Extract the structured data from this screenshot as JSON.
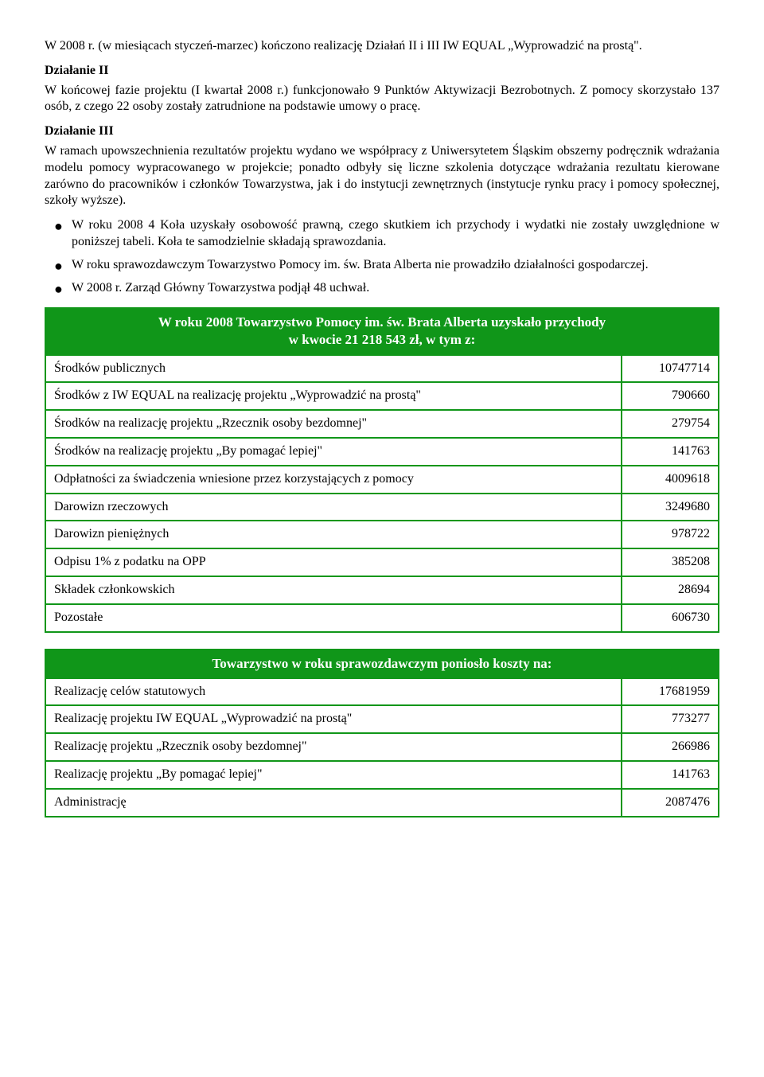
{
  "intro": {
    "p1": "W 2008 r. (w miesiącach styczeń-marzec) kończono realizację Działań II i III IW EQUAL „Wyprowadzić na prostą\".",
    "h_d2": "Działanie II",
    "p2": "W końcowej fazie projektu (I kwartał 2008 r.) funkcjonowało 9 Punktów Aktywizacji Bezrobotnych. Z pomocy skorzystało 137 osób, z czego 22 osoby zostały zatrudnione na podstawie umowy o pracę.",
    "h_d3": "Działanie III",
    "p3": "W ramach upowszechnienia rezultatów projektu wydano we współpracy z Uniwersytetem Śląskim obszerny podręcznik wdrażania modelu pomocy wypracowanego w projekcie; ponadto odbyły się liczne szkolenia dotyczące wdrażania rezultatu kierowane zarówno do pracowników i członków Towarzystwa, jak i do instytucji zewnętrznych (instytucje rynku pracy i pomocy społecznej, szkoły wyższe)."
  },
  "bullets": [
    "W roku 2008 4 Koła uzyskały osobowość prawną, czego skutkiem ich przychody i wydatki nie zostały uwzględnione w poniższej tabeli. Koła te samodzielnie składają sprawozdania.",
    "W roku sprawozdawczym Towarzystwo Pomocy im. św. Brata Alberta nie prowadziło działalności gospodarczej.",
    "W 2008 r. Zarząd  Główny Towarzystwa podjął 48 uchwał."
  ],
  "table1": {
    "header_line1": "W roku  2008 Towarzystwo Pomocy im. św. Brata Alberta  uzyskało przychody",
    "header_line2": "w kwocie 21 218 543 zł, w tym  z:",
    "rows": [
      {
        "label": "Środków publicznych",
        "value": "10747714"
      },
      {
        "label": "Środków z IW EQUAL na realizację projektu „Wyprowadzić na prostą\"",
        "value": "790660"
      },
      {
        "label": "Środków na realizację projektu „Rzecznik osoby bezdomnej\"",
        "value": "279754"
      },
      {
        "label": "Środków na realizację projektu „By pomagać lepiej\"",
        "value": "141763"
      },
      {
        "label": "Odpłatności za świadczenia wniesione przez korzystających z pomocy",
        "value": "4009618"
      },
      {
        "label": "Darowizn rzeczowych",
        "value": "3249680"
      },
      {
        "label": "Darowizn pieniężnych",
        "value": "978722"
      },
      {
        "label": "Odpisu 1% z podatku na OPP",
        "value": "385208"
      },
      {
        "label": "Składek członkowskich",
        "value": "28694"
      },
      {
        "label": "Pozostałe",
        "value": "606730"
      }
    ]
  },
  "table2": {
    "header": "Towarzystwo w roku sprawozdawczym poniosło koszty na:",
    "rows": [
      {
        "label": "Realizację celów statutowych",
        "value": "17681959"
      },
      {
        "label": "Realizację projektu IW EQUAL „Wyprowadzić na prostą\"",
        "value": "773277"
      },
      {
        "label": "Realizację projektu „Rzecznik osoby bezdomnej\"",
        "value": "266986"
      },
      {
        "label": "Realizację projektu „By pomagać lepiej\"",
        "value": "141763"
      },
      {
        "label": "Administrację",
        "value": "2087476"
      }
    ]
  }
}
